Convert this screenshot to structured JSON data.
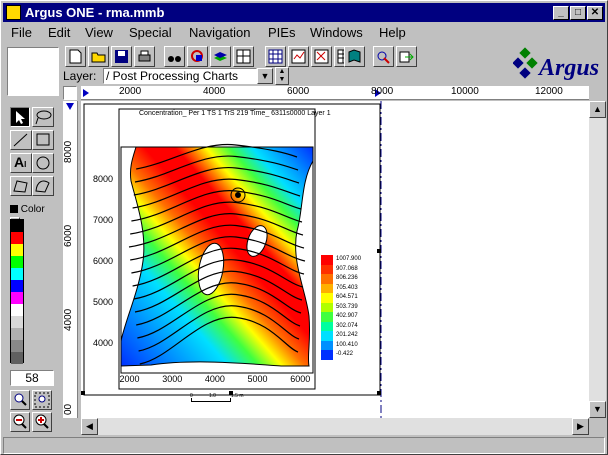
{
  "window": {
    "title": "Argus ONE - rma.mmb",
    "min": "_",
    "max": "□",
    "close": "✕"
  },
  "menu": [
    "File",
    "Edit",
    "View",
    "Special",
    "Navigation",
    "PIEs",
    "Windows",
    "Help"
  ],
  "brand": {
    "logo_text": "Argus"
  },
  "layer": {
    "label": "Layer:",
    "value": "/ Post Processing Charts"
  },
  "ruler_h": [
    "2000",
    "4000",
    "6000",
    "8000",
    "10000",
    "12000"
  ],
  "ruler_v": [
    "8000",
    "6000",
    "4000",
    "00"
  ],
  "palette": {
    "color_label": "Color",
    "colors": [
      "#000000",
      "#ff0000",
      "#ffff00",
      "#00ff00",
      "#00ffff",
      "#0000ff",
      "#ff00ff",
      "#ffffff",
      "#d8d8d8",
      "#b0b0b0",
      "#888888",
      "#606060"
    ],
    "value": "58"
  },
  "chart": {
    "title": "Concentration_ Per 1 TS 1 TrS 219 Time_ 6311s0000  Layer 1",
    "y_ticks": [
      "8000",
      "7000",
      "6000",
      "5000",
      "4000"
    ],
    "x_ticks": [
      "2000",
      "3000",
      "4000",
      "5000",
      "6000"
    ],
    "scale_labels": [
      "0",
      "1.0",
      "1.5 m"
    ],
    "legend": [
      {
        "label": "1007.900",
        "color": "#ff0000"
      },
      {
        "label": "907.068",
        "color": "#ff3000"
      },
      {
        "label": "806.236",
        "color": "#ff7000"
      },
      {
        "label": "705.403",
        "color": "#ffb000"
      },
      {
        "label": "604.571",
        "color": "#ffff00"
      },
      {
        "label": "503.739",
        "color": "#b0ff00"
      },
      {
        "label": "402.907",
        "color": "#40ff40"
      },
      {
        "label": "302.074",
        "color": "#00ffa0"
      },
      {
        "label": "201.242",
        "color": "#00e0ff"
      },
      {
        "label": "100.410",
        "color": "#0090ff"
      },
      {
        "label": "-0.422",
        "color": "#0030ff"
      }
    ]
  },
  "chart_data": {
    "type": "heatmap",
    "title": "Concentration_ Per 1 TS 1 TrS 219 Time_ 6311s0000  Layer 1",
    "x_ticks": [
      2000,
      3000,
      4000,
      5000,
      6000
    ],
    "y_ticks": [
      4000,
      5000,
      6000,
      7000,
      8000
    ],
    "xlim": [
      1800,
      6300
    ],
    "ylim": [
      3300,
      8800
    ],
    "legend_levels": [
      1007.9,
      907.068,
      806.236,
      705.403,
      604.571,
      503.739,
      402.907,
      302.074,
      201.242,
      100.41,
      -0.422
    ],
    "legend_placement": "right",
    "grid": false
  }
}
